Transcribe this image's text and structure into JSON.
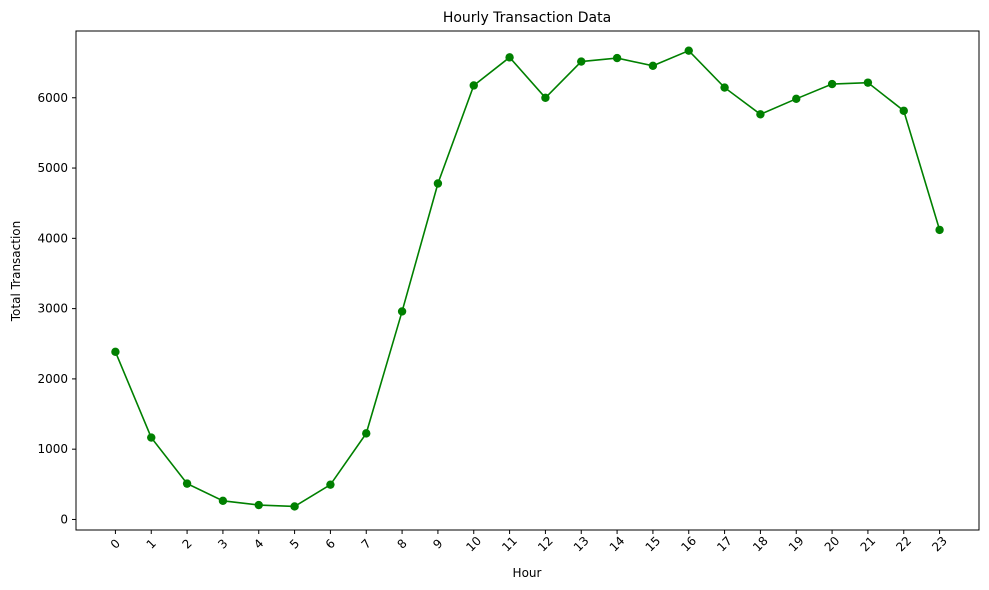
{
  "chart_data": {
    "type": "line",
    "title": "Hourly Transaction Data",
    "xlabel": "Hour",
    "ylabel": "Total Transaction",
    "x": [
      0,
      1,
      2,
      3,
      4,
      5,
      6,
      7,
      8,
      9,
      10,
      11,
      12,
      13,
      14,
      15,
      16,
      17,
      18,
      19,
      20,
      21,
      22,
      23
    ],
    "x_tick_labels": [
      "0",
      "1",
      "2",
      "3",
      "4",
      "5",
      "6",
      "7",
      "8",
      "9",
      "10",
      "11",
      "12",
      "13",
      "14",
      "15",
      "16",
      "17",
      "18",
      "19",
      "20",
      "21",
      "22",
      "23"
    ],
    "y_ticks": [
      0,
      1000,
      2000,
      3000,
      4000,
      5000,
      6000
    ],
    "ylim": [
      -150,
      6950
    ],
    "xlim": [
      -1.1,
      24.1
    ],
    "grid": false,
    "series": [
      {
        "values": [
          2385,
          1165,
          510,
          265,
          205,
          185,
          495,
          1225,
          2960,
          4780,
          6175,
          6575,
          6000,
          6515,
          6565,
          6455,
          6670,
          6145,
          5765,
          5985,
          6195,
          6215,
          5815,
          4120
        ],
        "color": "#008000",
        "marker": "circle"
      }
    ],
    "tick_rotation_deg": 45
  }
}
